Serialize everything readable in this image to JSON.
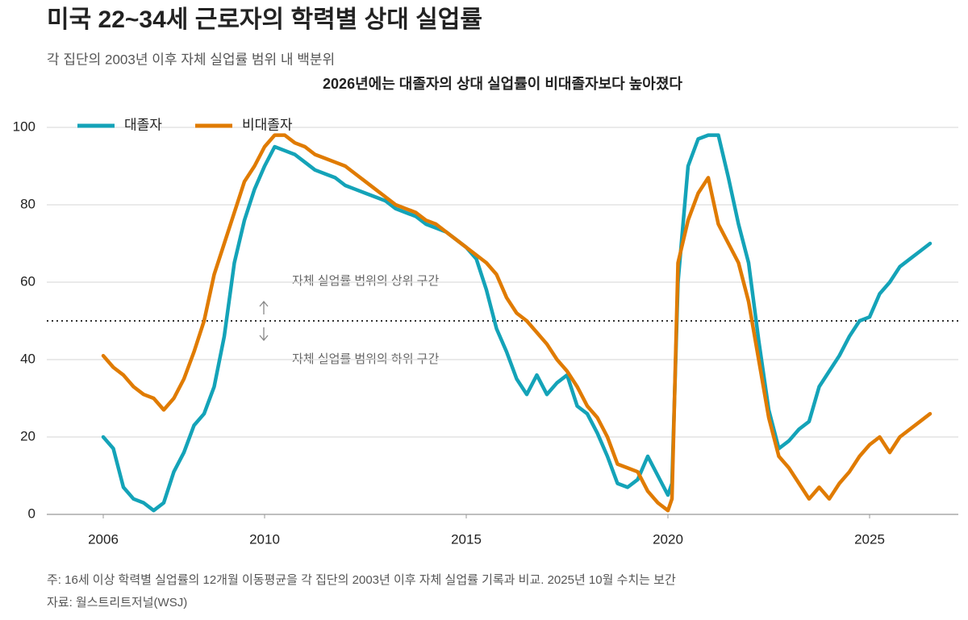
{
  "chart_data": {
    "type": "line",
    "title": "미국 22~34세 근로자의 학력별 상대 실업률",
    "subtitle": "각 집단의 2003년 이후 자체 실업률 범위 내 백분위",
    "heading": "2026년에는 대졸자의 상대 실업률이 비대졸자보다 높아졌다",
    "annotations": [
      "자체 실업률 범위의 상위 구간",
      "자체 실업률 범위의 하위 구간"
    ],
    "reference_line": 50,
    "note": "주: 16세 이상 학력별 실업률의 12개월 이동평균을 각 집단의 2003년 이후 자체 실업률 기록과 비교. 2025년 10월 수치는 보간",
    "source": "자료: 월스트리트저널(WSJ)",
    "x": [
      2006,
      2006.25,
      2006.5,
      2006.75,
      2007,
      2007.25,
      2007.5,
      2007.75,
      2008,
      2008.25,
      2008.5,
      2008.75,
      2009,
      2009.25,
      2009.5,
      2009.75,
      2010,
      2010.25,
      2010.5,
      2010.75,
      2011,
      2011.25,
      2011.5,
      2011.75,
      2012,
      2012.25,
      2012.5,
      2012.75,
      2013,
      2013.25,
      2013.5,
      2013.75,
      2014,
      2014.25,
      2014.5,
      2014.75,
      2015,
      2015.25,
      2015.5,
      2015.75,
      2016,
      2016.25,
      2016.5,
      2016.75,
      2017,
      2017.25,
      2017.5,
      2017.75,
      2018,
      2018.25,
      2018.5,
      2018.75,
      2019,
      2019.25,
      2019.5,
      2019.75,
      2020,
      2020.1,
      2020.25,
      2020.5,
      2020.75,
      2021,
      2021.25,
      2021.5,
      2021.75,
      2022,
      2022.25,
      2022.5,
      2022.75,
      2023,
      2023.25,
      2023.5,
      2023.75,
      2024,
      2024.25,
      2024.5,
      2024.75,
      2025,
      2025.25,
      2025.5,
      2025.75,
      2026,
      2026.25,
      2026.5
    ],
    "series": [
      {
        "name": "대졸자",
        "color": "#14a3b8",
        "values": [
          20,
          17,
          7,
          4,
          3,
          1,
          3,
          11,
          16,
          23,
          26,
          33,
          46,
          65,
          76,
          84,
          90,
          95,
          94,
          93,
          91,
          89,
          88,
          87,
          85,
          84,
          83,
          82,
          81,
          79,
          78,
          77,
          75,
          74,
          73,
          71,
          69,
          66,
          58,
          48,
          42,
          35,
          31,
          36,
          31,
          34,
          36,
          28,
          26,
          21,
          15,
          8,
          7,
          9,
          15,
          10,
          5,
          8,
          60,
          90,
          97,
          98,
          98,
          87,
          75,
          65,
          45,
          27,
          17,
          19,
          22,
          24,
          33,
          37,
          41,
          46,
          50,
          51,
          57,
          60,
          64,
          66,
          68,
          70
        ]
      },
      {
        "name": "비대졸자",
        "color": "#e07b00",
        "values": [
          41,
          38,
          36,
          33,
          31,
          30,
          27,
          30,
          35,
          42,
          50,
          62,
          70,
          78,
          86,
          90,
          95,
          98,
          98,
          96,
          95,
          93,
          92,
          91,
          90,
          88,
          86,
          84,
          82,
          80,
          79,
          78,
          76,
          75,
          73,
          71,
          69,
          67,
          65,
          62,
          56,
          52,
          50,
          47,
          44,
          40,
          37,
          33,
          28,
          25,
          20,
          13,
          12,
          11,
          6,
          3,
          1,
          4,
          65,
          76,
          83,
          87,
          75,
          70,
          65,
          55,
          40,
          25,
          15,
          12,
          8,
          4,
          7,
          4,
          8,
          11,
          15,
          18,
          20,
          16,
          20,
          22,
          24,
          26
        ]
      }
    ],
    "xlim": [
      2004.6,
      2027.2
    ],
    "xticks": [
      2006,
      2010,
      2015,
      2020,
      2025
    ],
    "ylim": [
      0,
      100
    ],
    "yticks": [
      0,
      20,
      40,
      60,
      80,
      100
    ],
    "grid": true,
    "legend": "top-left"
  }
}
